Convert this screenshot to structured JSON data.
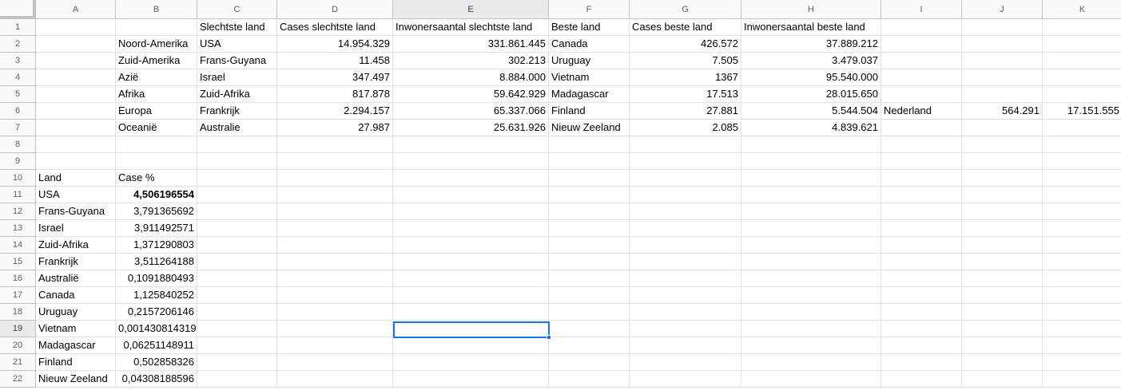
{
  "columns": [
    "A",
    "B",
    "C",
    "D",
    "E",
    "F",
    "G",
    "H",
    "I",
    "J",
    "K"
  ],
  "rows": [
    {
      "n": "1",
      "cells": [
        "",
        "",
        "Slechtste land",
        "Cases slechtste land",
        "Inwonersaantal slechtste land",
        "Beste land",
        "Cases beste land",
        "Inwonersaantal beste land",
        "",
        "",
        ""
      ]
    },
    {
      "n": "2",
      "cells": [
        "",
        "Noord-Amerika",
        "USA",
        "14.954.329",
        "331.861.445",
        "Canada",
        "426.572",
        "37.889.212",
        "",
        "",
        ""
      ]
    },
    {
      "n": "3",
      "cells": [
        "",
        "Zuid-Amerika",
        "Frans-Guyana",
        "11.458",
        "302.213",
        "Uruguay",
        "7.505",
        "3.479.037",
        "",
        "",
        ""
      ]
    },
    {
      "n": "4",
      "cells": [
        "",
        "Azië",
        "Israel",
        "347.497",
        "8.884.000",
        "Vietnam",
        "1367",
        "95.540.000",
        "",
        "",
        ""
      ]
    },
    {
      "n": "5",
      "cells": [
        "",
        "Afrika",
        "Zuid-Afrika",
        "817.878",
        "59.642.929",
        "Madagascar",
        "17.513",
        "28.015.650",
        "",
        "",
        ""
      ]
    },
    {
      "n": "6",
      "cells": [
        "",
        "Europa",
        "Frankrijk",
        "2.294.157",
        "65.337.066",
        "Finland",
        "27.881",
        "5.544.504",
        "Nederland",
        "564.291",
        "17.151.555"
      ]
    },
    {
      "n": "7",
      "cells": [
        "",
        "Oceanië",
        "Australie",
        "27.987",
        "25.631.926",
        "Nieuw Zeeland",
        "2.085",
        "4.839.621",
        "",
        "",
        ""
      ]
    },
    {
      "n": "8",
      "cells": [
        "",
        "",
        "",
        "",
        "",
        "",
        "",
        "",
        "",
        "",
        ""
      ]
    },
    {
      "n": "9",
      "cells": [
        "",
        "",
        "",
        "",
        "",
        "",
        "",
        "",
        "",
        "",
        ""
      ]
    },
    {
      "n": "10",
      "cells": [
        "Land",
        "Case %",
        "",
        "",
        "",
        "",
        "",
        "",
        "",
        "",
        ""
      ]
    },
    {
      "n": "11",
      "cells": [
        "USA",
        "4,506196554",
        "",
        "",
        "",
        "",
        "",
        "",
        "",
        "",
        ""
      ]
    },
    {
      "n": "12",
      "cells": [
        "Frans-Guyana",
        "3,791365692",
        "",
        "",
        "",
        "",
        "",
        "",
        "",
        "",
        ""
      ]
    },
    {
      "n": "13",
      "cells": [
        "Israel",
        "3,911492571",
        "",
        "",
        "",
        "",
        "",
        "",
        "",
        "",
        ""
      ]
    },
    {
      "n": "14",
      "cells": [
        "Zuid-Afrika",
        "1,371290803",
        "",
        "",
        "",
        "",
        "",
        "",
        "",
        "",
        ""
      ]
    },
    {
      "n": "15",
      "cells": [
        "Frankrijk",
        "3,511264188",
        "",
        "",
        "",
        "",
        "",
        "",
        "",
        "",
        ""
      ]
    },
    {
      "n": "16",
      "cells": [
        "Australië",
        "0,1091880493",
        "",
        "",
        "",
        "",
        "",
        "",
        "",
        "",
        ""
      ]
    },
    {
      "n": "17",
      "cells": [
        "Canada",
        "1,125840252",
        "",
        "",
        "",
        "",
        "",
        "",
        "",
        "",
        ""
      ]
    },
    {
      "n": "18",
      "cells": [
        "Uruguay",
        "0,2157206146",
        "",
        "",
        "",
        "",
        "",
        "",
        "",
        "",
        ""
      ]
    },
    {
      "n": "19",
      "cells": [
        "Vietnam",
        "0,001430814319",
        "",
        "",
        "",
        "",
        "",
        "",
        "",
        "",
        ""
      ]
    },
    {
      "n": "20",
      "cells": [
        "Madagascar",
        "0,06251148911",
        "",
        "",
        "",
        "",
        "",
        "",
        "",
        "",
        ""
      ]
    },
    {
      "n": "21",
      "cells": [
        "Finland",
        "0,502858326",
        "",
        "",
        "",
        "",
        "",
        "",
        "",
        "",
        ""
      ]
    },
    {
      "n": "22",
      "cells": [
        "Nieuw Zeeland",
        "0,04308188596",
        "",
        "",
        "",
        "",
        "",
        "",
        "",
        "",
        ""
      ]
    }
  ],
  "selection": {
    "column": "E",
    "row": "19"
  },
  "bold_cells": [
    "B11"
  ],
  "colors": {
    "selection_border": "#1a73e8",
    "header_bg": "#f8f9fa",
    "gridline": "#e2e3e3"
  }
}
